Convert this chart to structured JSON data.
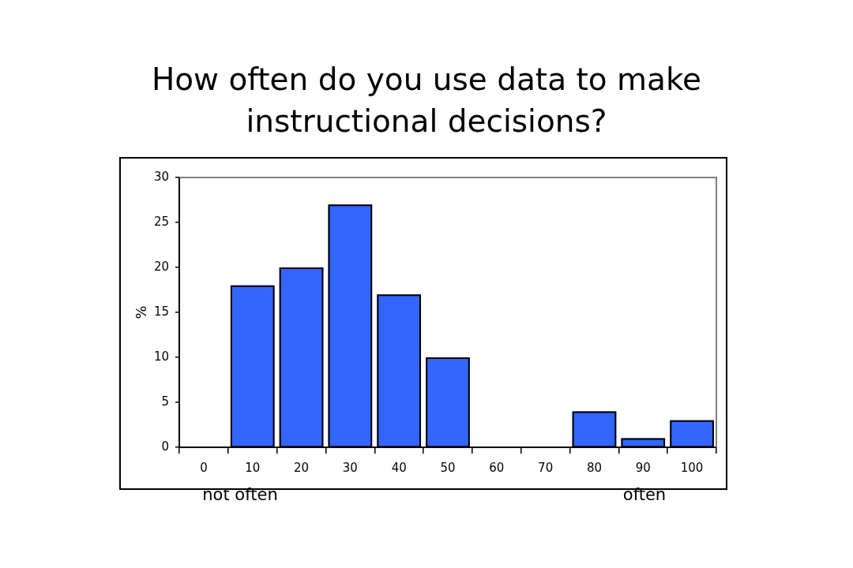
{
  "chart_data": {
    "type": "bar",
    "title": "How often do you use data to make instructional decisions?",
    "ylabel": "%",
    "categories": [
      "0",
      "10",
      "20",
      "30",
      "40",
      "50",
      "60",
      "70",
      "80",
      "90",
      "100"
    ],
    "values": [
      0,
      18,
      20,
      27,
      17,
      10,
      0,
      0,
      4,
      1,
      3
    ],
    "color": "#3366ff",
    "ylim": [
      0,
      30
    ],
    "yticks": [
      0,
      5,
      10,
      15,
      20,
      25,
      30
    ],
    "annotations": [
      "not often",
      "often"
    ]
  }
}
